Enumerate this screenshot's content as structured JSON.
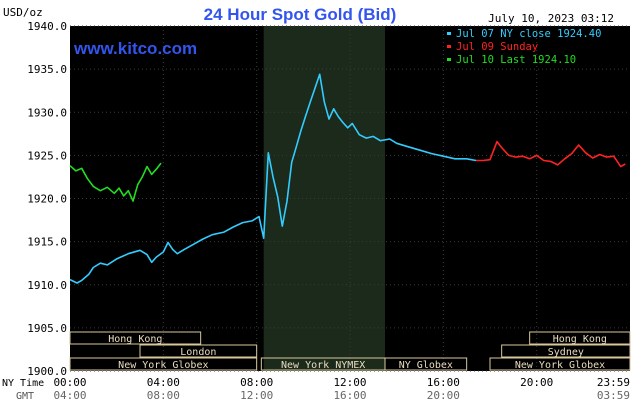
{
  "header": {
    "title": "24 Hour Spot Gold (Bid)",
    "unit": "USD/oz",
    "timestamp": "July 10, 2023 03:12",
    "website": "www.kitco.com"
  },
  "legend": [
    {
      "label": "Jul 07 NY close 1924.40",
      "color": "#33ccff"
    },
    {
      "label": "Jul 09 Sunday",
      "color": "#ff2222"
    },
    {
      "label": "Jul 10 Last 1924.10",
      "color": "#22dd22"
    }
  ],
  "axis_row_labels": {
    "ny": "NY Time",
    "gmt": "GMT"
  },
  "sessions": [
    {
      "label": "Hong Kong",
      "row": 0,
      "start": 0,
      "end": 5.6
    },
    {
      "label": "London",
      "row": 1,
      "start": 3.0,
      "end": 8.0
    },
    {
      "label": "New York Globex",
      "row": 2,
      "start": 0,
      "end": 8.0
    },
    {
      "label": "New York NYMEX",
      "row": 2,
      "start": 8.2,
      "end": 13.5
    },
    {
      "label": "NY Globex",
      "row": 2,
      "start": 13.5,
      "end": 17.0
    },
    {
      "label": "Hong Kong",
      "row": 0,
      "start": 19.7,
      "end": 24.0
    },
    {
      "label": "Sydney",
      "row": 1,
      "start": 18.5,
      "end": 24.0
    },
    {
      "label": "New York Globex",
      "row": 2,
      "start": 18.0,
      "end": 24.0
    }
  ],
  "chart_data": {
    "type": "line",
    "title": "24 Hour Spot Gold (Bid)",
    "ylabel": "USD/oz",
    "xlim": [
      0,
      24
    ],
    "ylim": [
      1900,
      1940
    ],
    "yticks": [
      "1940.0",
      "1935.0",
      "1930.0",
      "1925.0",
      "1920.0",
      "1915.0",
      "1910.0",
      "1905.0",
      "1900.0"
    ],
    "xticks_ny": [
      "00:00",
      "04:00",
      "08:00",
      "12:00",
      "16:00",
      "20:00",
      "23:59"
    ],
    "xticks_gmt": [
      "04:00",
      "08:00",
      "12:00",
      "16:00",
      "20:00",
      "",
      "03:59"
    ],
    "highlight_range": [
      8.3,
      13.5
    ],
    "grid": true,
    "series": [
      {
        "name": "Jul 07 NY close 1924.40",
        "color": "#33ccff",
        "x": [
          0,
          0.3,
          0.5,
          0.8,
          1.0,
          1.3,
          1.6,
          2.0,
          2.5,
          3.0,
          3.3,
          3.5,
          3.7,
          4.0,
          4.2,
          4.4,
          4.6,
          4.9,
          5.3,
          5.7,
          6.1,
          6.6,
          7.0,
          7.4,
          7.8,
          8.1,
          8.3,
          8.5,
          8.7,
          8.9,
          9.1,
          9.3,
          9.5,
          9.7,
          9.9,
          10.1,
          10.3,
          10.5,
          10.7,
          10.9,
          11.1,
          11.3,
          11.5,
          11.7,
          11.9,
          12.1,
          12.4,
          12.7,
          13.0,
          13.3,
          13.7,
          14.0,
          14.5,
          15.0,
          15.5,
          16.0,
          16.5,
          17.0,
          17.4
        ],
        "y": [
          1910.6,
          1910.2,
          1910.5,
          1911.2,
          1912.0,
          1912.5,
          1912.3,
          1913.0,
          1913.6,
          1914.0,
          1913.5,
          1912.6,
          1913.2,
          1913.8,
          1914.9,
          1914.1,
          1913.6,
          1914.1,
          1914.7,
          1915.3,
          1915.8,
          1916.1,
          1916.7,
          1917.2,
          1917.4,
          1917.9,
          1915.4,
          1925.3,
          1922.5,
          1920.2,
          1916.8,
          1919.7,
          1924.2,
          1926.0,
          1927.9,
          1929.6,
          1931.2,
          1932.8,
          1934.4,
          1931.2,
          1929.2,
          1930.4,
          1929.5,
          1928.8,
          1928.2,
          1928.7,
          1927.4,
          1927.0,
          1927.2,
          1926.7,
          1926.9,
          1926.4,
          1926.0,
          1925.6,
          1925.2,
          1924.9,
          1924.6,
          1924.6,
          1924.4
        ]
      },
      {
        "name": "Jul 09 Sunday",
        "color": "#ff2222",
        "x": [
          17.4,
          17.7,
          18.0,
          18.3,
          18.5,
          18.8,
          19.1,
          19.4,
          19.7,
          20.0,
          20.3,
          20.6,
          20.9,
          21.2,
          21.5,
          21.8,
          22.1,
          22.4,
          22.7,
          23.0,
          23.3,
          23.6,
          23.8
        ],
        "y": [
          1924.4,
          1924.4,
          1924.5,
          1926.6,
          1925.9,
          1925.0,
          1924.8,
          1924.9,
          1924.6,
          1925.0,
          1924.4,
          1924.3,
          1923.9,
          1924.6,
          1925.2,
          1926.2,
          1925.3,
          1924.7,
          1925.1,
          1924.8,
          1924.9,
          1923.7,
          1924.0
        ]
      },
      {
        "name": "Jul 10 Last 1924.10",
        "color": "#22dd22",
        "x": [
          0,
          0.25,
          0.5,
          0.75,
          1.0,
          1.3,
          1.6,
          1.9,
          2.1,
          2.3,
          2.5,
          2.7,
          2.9,
          3.1,
          3.3,
          3.5,
          3.7,
          3.9
        ],
        "y": [
          1923.8,
          1923.2,
          1923.5,
          1922.3,
          1921.4,
          1920.9,
          1921.3,
          1920.6,
          1921.2,
          1920.3,
          1920.9,
          1919.7,
          1921.6,
          1922.5,
          1923.7,
          1922.8,
          1923.4,
          1924.1
        ]
      }
    ]
  }
}
